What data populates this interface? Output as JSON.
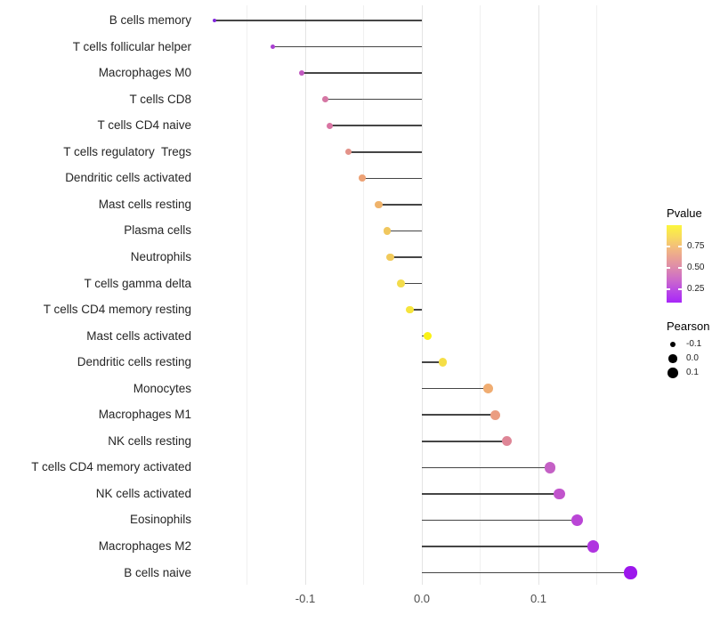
{
  "chart_data": {
    "type": "scatter",
    "style": "lollipop (horizontal dot-and-segment plot)",
    "title": "",
    "xlabel": "",
    "ylabel": "",
    "grid": "vertical light-gray gridlines every 0.05",
    "xlim": [
      -0.185,
      0.195
    ],
    "x_ticks": [
      "-0.1",
      "0.0",
      "0.1"
    ],
    "x_tick_values": [
      -0.1,
      0.0,
      0.1
    ],
    "gridline_values": [
      -0.15,
      -0.1,
      -0.05,
      0.0,
      0.05,
      0.1,
      0.15
    ],
    "categories": [
      "B cells memory",
      "T cells follicular helper",
      "Macrophages M0",
      "T cells CD8",
      "T cells CD4 naive",
      "T cells regulatory  Tregs",
      "Dendritic cells activated",
      "Mast cells resting",
      "Plasma cells",
      "Neutrophils",
      "T cells gamma delta",
      "T cells CD4 memory resting",
      "Mast cells activated",
      "Dendritic cells resting",
      "Monocytes",
      "Macrophages M1",
      "NK cells resting",
      "T cells CD4 memory activated",
      "NK cells activated",
      "Eosinophils",
      "Macrophages M2",
      "B cells naive"
    ],
    "series": [
      {
        "name": "Pearson",
        "values": [
          -0.178,
          -0.128,
          -0.103,
          -0.083,
          -0.079,
          -0.063,
          -0.051,
          -0.037,
          -0.03,
          -0.027,
          -0.018,
          -0.01,
          0.005,
          0.018,
          0.057,
          0.063,
          0.073,
          0.11,
          0.118,
          0.133,
          0.147,
          0.179
        ]
      }
    ],
    "dot_colors": [
      "#8227DD",
      "#A93FD1",
      "#C159C0",
      "#D577A4",
      "#D975A3",
      "#E39289",
      "#EDA276",
      "#EFB36B",
      "#F0C75E",
      "#F1CA5B",
      "#F3DC4B",
      "#F6E43C",
      "#FAF216",
      "#F5DE46",
      "#F0AD72",
      "#EB9D81",
      "#DE8596",
      "#C460C5",
      "#C154CC",
      "#BA45D6",
      "#B034E0",
      "#9C17EC"
    ],
    "stem_color": "#454545",
    "legend_position": "right",
    "legend": {
      "pvalue": {
        "title": "Pvalue",
        "tick_labels": [
          "0.75",
          "0.50",
          "0.25"
        ],
        "gradient_stops_top_to_bottom": [
          "#FCF63C",
          "#F8DC5C",
          "#F3BD7C",
          "#E9A096",
          "#DB86B0",
          "#CB68CC",
          "#B847E6",
          "#A826F8"
        ]
      },
      "pearson": {
        "title": "Pearson",
        "tick_labels": [
          "-0.1",
          "0.0",
          "0.1"
        ],
        "tick_values": [
          -0.1,
          0.0,
          0.1
        ],
        "dot_color": "#000000"
      }
    }
  }
}
